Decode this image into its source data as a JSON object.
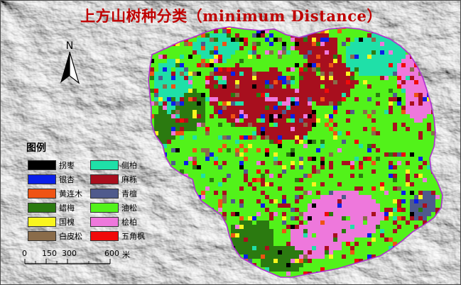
{
  "title": "上方山树种分类（minimum Distance）",
  "north_arrow": {
    "label": "N"
  },
  "legend": {
    "title": "图例",
    "items": [
      {
        "label": "拐枣",
        "color": "#000000"
      },
      {
        "label": "侧柏",
        "color": "#1fe0a8"
      },
      {
        "label": "银杏",
        "color": "#0a1fe8"
      },
      {
        "label": "麻栎",
        "color": "#a80f1e"
      },
      {
        "label": "黄连木",
        "color": "#ef5314"
      },
      {
        "label": "青檀",
        "color": "#4f5a8c"
      },
      {
        "label": "蜡梅",
        "color": "#2b7a10"
      },
      {
        "label": "油松",
        "color": "#52f21a"
      },
      {
        "label": "国槐",
        "color": "#f8f51e"
      },
      {
        "label": "桧柏",
        "color": "#ee78dc"
      },
      {
        "label": "白皮松",
        "color": "#8a6c4a"
      },
      {
        "label": "五角枫",
        "color": "#f00a0a"
      }
    ]
  },
  "scale_bar": {
    "ticks": [
      "0",
      "150",
      "300",
      "600"
    ],
    "unit": "米"
  },
  "colors": {
    "title": "#c00000",
    "boundary": "#b030d0"
  }
}
